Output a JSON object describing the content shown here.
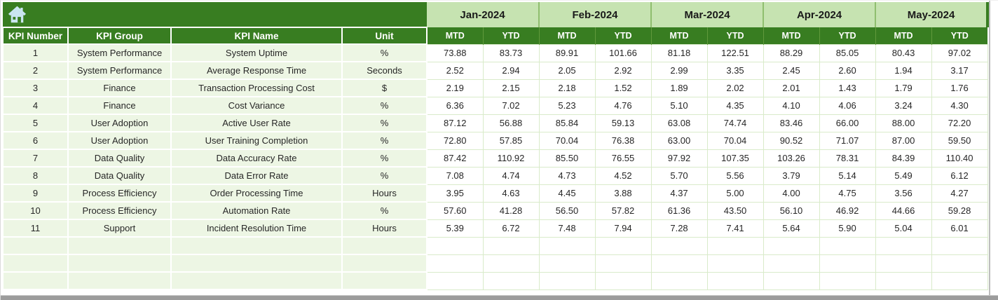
{
  "toolbar": {
    "home_icon": "home-icon"
  },
  "table": {
    "months": [
      "Jan-2024",
      "Feb-2024",
      "Mar-2024",
      "Apr-2024",
      "May-2024"
    ],
    "period_columns": [
      "MTD",
      "YTD"
    ],
    "info_columns": [
      "KPI Number",
      "KPI Group",
      "KPI Name",
      "Unit"
    ],
    "rows": [
      {
        "number": "1",
        "group": "System Performance",
        "name": "System Uptime",
        "unit": "%",
        "values": [
          "73.88",
          "83.73",
          "89.91",
          "101.66",
          "81.18",
          "122.51",
          "88.29",
          "85.05",
          "80.43",
          "97.02"
        ]
      },
      {
        "number": "2",
        "group": "System Performance",
        "name": "Average Response Time",
        "unit": "Seconds",
        "values": [
          "2.52",
          "2.94",
          "2.05",
          "2.92",
          "2.99",
          "3.35",
          "2.45",
          "2.60",
          "1.94",
          "3.17"
        ]
      },
      {
        "number": "3",
        "group": "Finance",
        "name": "Transaction Processing Cost",
        "unit": "$",
        "values": [
          "2.19",
          "2.15",
          "2.18",
          "1.52",
          "1.89",
          "2.02",
          "2.01",
          "1.43",
          "1.79",
          "1.76"
        ]
      },
      {
        "number": "4",
        "group": "Finance",
        "name": "Cost Variance",
        "unit": "%",
        "values": [
          "6.36",
          "7.02",
          "5.23",
          "4.76",
          "5.10",
          "4.35",
          "4.10",
          "4.06",
          "3.24",
          "4.30"
        ]
      },
      {
        "number": "5",
        "group": "User Adoption",
        "name": "Active User Rate",
        "unit": "%",
        "values": [
          "87.12",
          "56.88",
          "85.84",
          "59.13",
          "63.08",
          "74.74",
          "83.46",
          "66.00",
          "88.00",
          "72.20"
        ]
      },
      {
        "number": "6",
        "group": "User Adoption",
        "name": "User Training Completion",
        "unit": "%",
        "values": [
          "72.80",
          "57.85",
          "70.04",
          "76.38",
          "63.00",
          "70.04",
          "90.52",
          "71.07",
          "87.00",
          "59.50"
        ]
      },
      {
        "number": "7",
        "group": "Data Quality",
        "name": "Data Accuracy Rate",
        "unit": "%",
        "values": [
          "87.42",
          "110.92",
          "85.50",
          "76.55",
          "97.92",
          "107.35",
          "103.26",
          "78.31",
          "84.39",
          "110.40"
        ]
      },
      {
        "number": "8",
        "group": "Data Quality",
        "name": "Data Error Rate",
        "unit": "%",
        "values": [
          "7.08",
          "4.74",
          "4.73",
          "4.52",
          "5.70",
          "5.56",
          "3.79",
          "5.14",
          "5.49",
          "6.12"
        ]
      },
      {
        "number": "9",
        "group": "Process Efficiency",
        "name": "Order Processing Time",
        "unit": "Hours",
        "values": [
          "3.95",
          "4.63",
          "4.45",
          "3.88",
          "4.37",
          "5.00",
          "4.00",
          "4.75",
          "3.56",
          "4.27"
        ]
      },
      {
        "number": "10",
        "group": "Process Efficiency",
        "name": "Automation Rate",
        "unit": "%",
        "values": [
          "57.60",
          "41.28",
          "56.50",
          "57.82",
          "61.36",
          "43.50",
          "56.10",
          "46.92",
          "44.66",
          "59.28"
        ]
      },
      {
        "number": "11",
        "group": "Support",
        "name": "Incident Resolution Time",
        "unit": "Hours",
        "values": [
          "5.39",
          "6.72",
          "7.48",
          "7.94",
          "7.28",
          "7.41",
          "5.64",
          "5.90",
          "5.04",
          "6.01"
        ]
      }
    ],
    "empty_row_count": 3
  },
  "colors": {
    "header_dark_green": "#387D21",
    "header_light_green": "#C6E3B1",
    "row_tint_green": "#EDF6E4",
    "grid_line_green": "#D9EBCA",
    "month_separator": "#8FBE6E",
    "home_icon_blue": "#CBE6F2",
    "scrollbar_gray": "#9C9C9C"
  }
}
